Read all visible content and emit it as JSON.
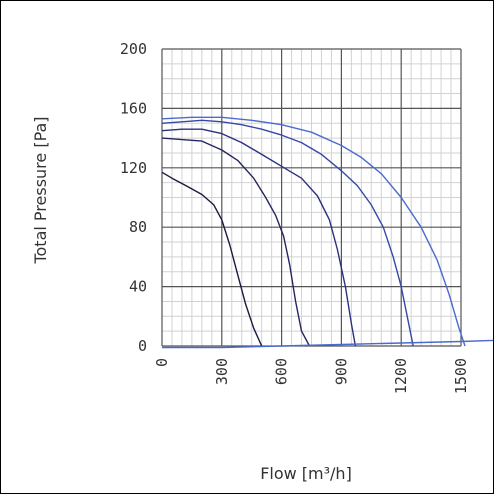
{
  "chart_data": {
    "type": "line",
    "title": "",
    "xlabel": "Flow [m³/h]",
    "ylabel": "Total Pressure [Pa]",
    "xlim": [
      0,
      1500
    ],
    "ylim": [
      0,
      200
    ],
    "x_ticks": [
      "0",
      "300",
      "600",
      "900",
      "1200",
      "1500"
    ],
    "y_ticks": [
      "200",
      "160",
      "120",
      "80",
      "40",
      "0"
    ],
    "grid": true,
    "legend": "none",
    "series": [
      {
        "color": "#1a1a40",
        "points": [
          [
            0,
            117
          ],
          [
            50,
            113
          ],
          [
            120,
            108
          ],
          [
            200,
            102
          ],
          [
            260,
            95
          ],
          [
            300,
            85
          ],
          [
            340,
            68
          ],
          [
            380,
            48
          ],
          [
            420,
            28
          ],
          [
            460,
            12
          ],
          [
            500,
            0
          ]
        ]
      },
      {
        "color": "#252560",
        "points": [
          [
            0,
            140
          ],
          [
            100,
            139
          ],
          [
            200,
            138
          ],
          [
            300,
            132
          ],
          [
            380,
            125
          ],
          [
            460,
            113
          ],
          [
            520,
            100
          ],
          [
            570,
            88
          ],
          [
            610,
            74
          ],
          [
            640,
            55
          ],
          [
            670,
            30
          ],
          [
            700,
            10
          ],
          [
            740,
            0
          ]
        ]
      },
      {
        "color": "#2a3080",
        "points": [
          [
            0,
            145
          ],
          [
            100,
            146
          ],
          [
            200,
            146
          ],
          [
            300,
            143
          ],
          [
            400,
            137
          ],
          [
            500,
            129
          ],
          [
            600,
            121
          ],
          [
            700,
            113
          ],
          [
            780,
            101
          ],
          [
            840,
            85
          ],
          [
            880,
            65
          ],
          [
            920,
            40
          ],
          [
            950,
            15
          ],
          [
            970,
            0
          ]
        ]
      },
      {
        "color": "#3548a8",
        "points": [
          [
            0,
            150
          ],
          [
            100,
            151
          ],
          [
            200,
            152
          ],
          [
            300,
            151
          ],
          [
            400,
            149
          ],
          [
            500,
            146
          ],
          [
            600,
            142
          ],
          [
            700,
            137
          ],
          [
            800,
            129
          ],
          [
            900,
            118
          ],
          [
            980,
            108
          ],
          [
            1050,
            95
          ],
          [
            1110,
            80
          ],
          [
            1160,
            60
          ],
          [
            1200,
            40
          ],
          [
            1230,
            20
          ],
          [
            1260,
            0
          ]
        ]
      },
      {
        "color": "#4a6ad0",
        "points": [
          [
            0,
            153
          ],
          [
            150,
            154
          ],
          [
            300,
            154
          ],
          [
            450,
            152
          ],
          [
            600,
            149
          ],
          [
            750,
            144
          ],
          [
            900,
            135
          ],
          [
            1000,
            127
          ],
          [
            1100,
            116
          ],
          [
            1200,
            100
          ],
          [
            1300,
            80
          ],
          [
            1380,
            58
          ],
          [
            1440,
            35
          ],
          [
            1490,
            12
          ],
          [
            1520,
            0
          ]
        ]
      },
      {
        "color": "#4a6ad0",
        "points": [
          [
            0,
            -1
          ],
          [
            300,
            -1
          ],
          [
            600,
            0
          ],
          [
            900,
            1
          ],
          [
            1200,
            2
          ],
          [
            1500,
            3
          ],
          [
            1720,
            4
          ]
        ]
      }
    ]
  }
}
